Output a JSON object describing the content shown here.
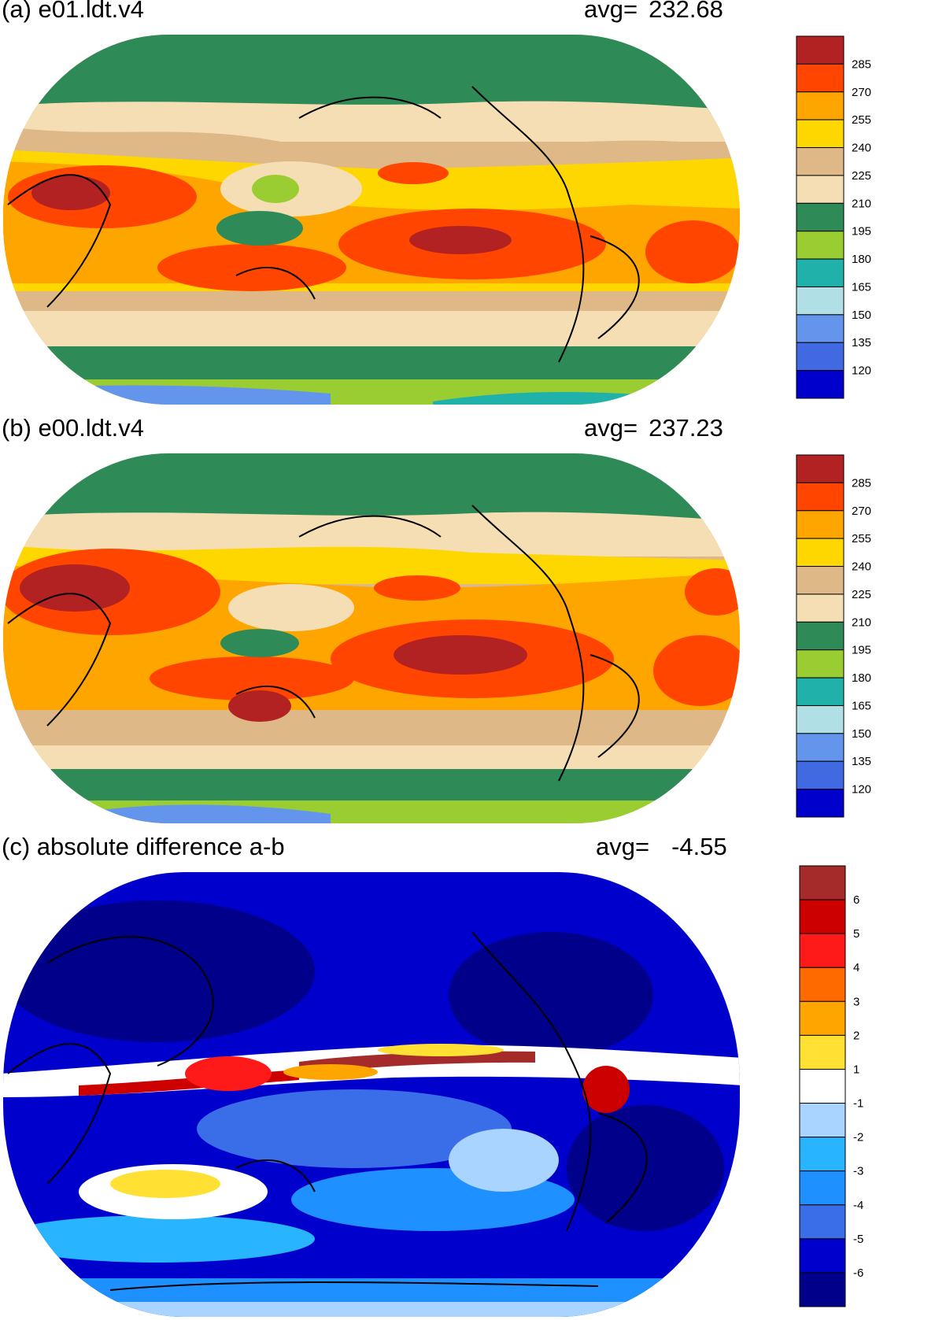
{
  "panels": [
    {
      "id": "a",
      "title": "(a) e01.ldt.v4",
      "avg_label": "avg=",
      "avg_value": "232.68",
      "colorbar": {
        "labels": [
          "285",
          "270",
          "255",
          "240",
          "225",
          "210",
          "195",
          "180",
          "165",
          "150",
          "135",
          "120"
        ],
        "colors": [
          "#b22222",
          "#ff4500",
          "#ffa500",
          "#ffd700",
          "#deb887",
          "#f5deb3",
          "#2e8b57",
          "#9acd32",
          "#20b2aa",
          "#b0e0e6",
          "#6495ed",
          "#4169e1",
          "#0000cd"
        ]
      }
    },
    {
      "id": "b",
      "title": "(b) e00.ldt.v4",
      "avg_label": "avg=",
      "avg_value": "237.23",
      "colorbar": {
        "labels": [
          "285",
          "270",
          "255",
          "240",
          "225",
          "210",
          "195",
          "180",
          "165",
          "150",
          "135",
          "120"
        ],
        "colors": [
          "#b22222",
          "#ff4500",
          "#ffa500",
          "#ffd700",
          "#deb887",
          "#f5deb3",
          "#2e8b57",
          "#9acd32",
          "#20b2aa",
          "#b0e0e6",
          "#6495ed",
          "#4169e1",
          "#0000cd"
        ]
      }
    },
    {
      "id": "c",
      "title": "(c) absolute difference a-b",
      "avg_label": "avg=",
      "avg_value": "-4.55",
      "colorbar": {
        "labels": [
          "6",
          "5",
          "4",
          "3",
          "2",
          "1",
          "-1",
          "-2",
          "-3",
          "-4",
          "-5",
          "-6"
        ],
        "colors": [
          "#a52a2a",
          "#cd0000",
          "#ff1a1a",
          "#ff6a00",
          "#ffa500",
          "#ffe033",
          "#ffffff",
          "#a8d4ff",
          "#28b4ff",
          "#1e90ff",
          "#3a6ee8",
          "#0000cd",
          "#00008b"
        ]
      }
    }
  ]
}
